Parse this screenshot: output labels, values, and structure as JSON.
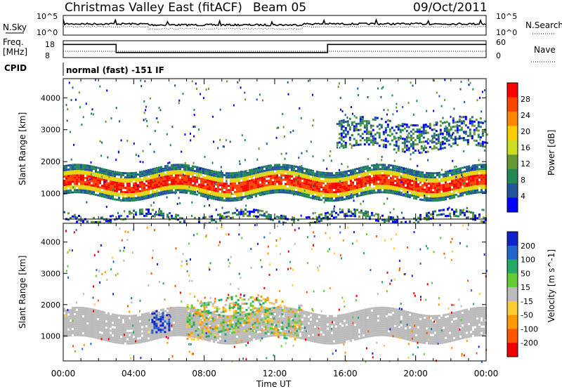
{
  "header": {
    "title": "Christmas Valley East (fitACF)",
    "beam": "Beam 05",
    "date": "09/Oct/2011"
  },
  "noise_panel": {
    "left_label": "N.Sky",
    "right_label": "N.Search",
    "left_ticks": [
      "10^5",
      "10^0"
    ],
    "right_ticks": [
      "10^5",
      "10^0"
    ]
  },
  "freq_panel": {
    "left_label_1": "Freq.",
    "left_label_2": "[MHz]",
    "right_label": "Nave",
    "left_ticks": [
      "18",
      "8"
    ],
    "right_ticks": [
      "60",
      "0"
    ],
    "freq_steps": [
      {
        "start_hour": 0,
        "end_hour": 3.0,
        "mhz": 17.3
      },
      {
        "start_hour": 3.0,
        "end_hour": 15.0,
        "mhz": 10.9
      },
      {
        "start_hour": 15.0,
        "end_hour": 24.0,
        "mhz": 17.3
      }
    ]
  },
  "cpid": {
    "label": "CPID",
    "value": "normal (fast) -151 IF"
  },
  "chart_data": [
    {
      "type": "heatmap",
      "title": "",
      "xlabel": "Time UT",
      "ylabel": "Slant Range [km]",
      "xlim": [
        0,
        24
      ],
      "ylim": [
        200,
        4600
      ],
      "x_ticks": [
        "00:00",
        "04:00",
        "08:00",
        "12:00",
        "16:00",
        "20:00",
        "00:00"
      ],
      "y_ticks": [
        "1000",
        "2000",
        "3000",
        "4000"
      ],
      "colorbar": {
        "label": "Power [dB]",
        "ticks": [
          "28",
          "24",
          "20",
          "16",
          "12",
          "8",
          "4"
        ],
        "colors": [
          "#ff0000",
          "#ff4400",
          "#ff8800",
          "#ffcc00",
          "#ccdd22",
          "#669933",
          "#228855",
          "#225599",
          "#0000ff"
        ]
      },
      "bands": [
        {
          "name": "main F-region echoes",
          "start_hour": 0.0,
          "end_hour": 24.0,
          "range_km": [
            900,
            1800
          ],
          "level_db": 26
        },
        {
          "name": "far range echoes",
          "start_hour": 15.5,
          "end_hour": 24.0,
          "range_km": [
            2400,
            3300
          ],
          "level_db": 8
        },
        {
          "name": "near range ground scatter",
          "start_hour": 0.0,
          "end_hour": 24.0,
          "range_km": [
            200,
            400
          ],
          "level_db": 6
        }
      ]
    },
    {
      "type": "heatmap",
      "title": "",
      "xlabel": "Time UT",
      "ylabel": "Slant Range [km]",
      "xlim": [
        0,
        24
      ],
      "ylim": [
        200,
        4600
      ],
      "x_ticks": [
        "00:00",
        "04:00",
        "08:00",
        "12:00",
        "16:00",
        "20:00",
        "00:00"
      ],
      "y_ticks": [
        "1000",
        "2000",
        "3000",
        "4000"
      ],
      "colorbar": {
        "label": "Velocity [m s^-1]",
        "ticks": [
          "200",
          "100",
          "50",
          "15",
          "-15",
          "-50",
          "-100",
          "-200"
        ],
        "colors": [
          "#1122cc",
          "#2266cc",
          "#22aa66",
          "#66cc33",
          "#bbbbbb",
          "#ffcc33",
          "#ff9900",
          "#ff5500",
          "#ee0000"
        ]
      },
      "bands": [
        {
          "name": "ground scatter",
          "start_hour": 0.0,
          "end_hour": 24.0,
          "range_km": [
            900,
            1800
          ],
          "velocity": 0
        },
        {
          "name": "positive velocity patch",
          "start_hour": 5.0,
          "end_hour": 6.0,
          "range_km": [
            1000,
            1700
          ],
          "velocity": 220
        },
        {
          "name": "midday mixed velocities",
          "start_hour": 7.0,
          "end_hour": 13.5,
          "range_km": [
            1000,
            2200
          ],
          "velocity": -60
        }
      ]
    }
  ],
  "colors": {
    "accent_red": "#ff0000",
    "accent_blue": "#0000ff"
  }
}
